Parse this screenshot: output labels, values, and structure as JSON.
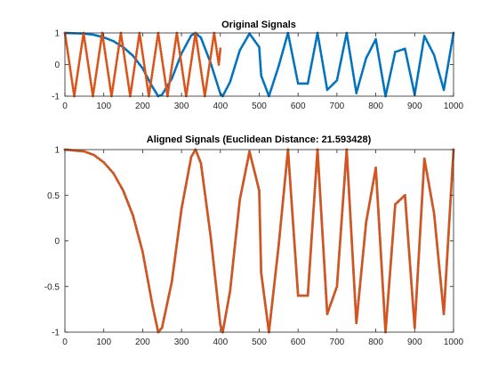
{
  "figure": {
    "background": "#ffffff"
  },
  "chart_data": [
    {
      "type": "line",
      "title": "Original Signals",
      "xlabel": "",
      "ylabel": "",
      "xlim": [
        0,
        1000
      ],
      "ylim": [
        -1,
        1
      ],
      "xticks": [
        0,
        100,
        200,
        300,
        400,
        500,
        600,
        700,
        800,
        900,
        1000
      ],
      "yticks": [
        -1,
        0,
        1
      ],
      "grid": false,
      "marker": "dot",
      "series": [
        {
          "color": "#0072BD",
          "description_of_curve": "chirp, 1000 samples",
          "x": [
            0,
            25,
            50,
            75,
            100,
            125,
            150,
            175,
            200,
            225,
            240,
            250,
            275,
            300,
            325,
            336,
            350,
            375,
            400,
            406,
            425,
            450,
            475,
            500,
            505,
            525,
            550,
            574,
            600,
            625,
            650,
            675,
            700,
            725,
            750,
            775,
            800,
            825,
            850,
            875,
            900,
            925,
            950,
            975,
            1000
          ],
          "y": [
            1,
            0.99,
            0.98,
            0.94,
            0.86,
            0.74,
            0.55,
            0.28,
            -0.12,
            -0.7,
            -1,
            -0.95,
            -0.45,
            0.35,
            0.92,
            1,
            0.85,
            0.05,
            -0.92,
            -1,
            -0.55,
            0.45,
            0.98,
            0.55,
            -0.35,
            -1,
            -0.05,
            1,
            -0.6,
            -0.6,
            1,
            -0.8,
            -0.5,
            1,
            -0.9,
            0.2,
            0.8,
            -1,
            0.4,
            0.5,
            -0.95,
            0.9,
            0.3,
            -0.8,
            1
          ]
        },
        {
          "color": "#D95319",
          "description_of_curve": "cosine, period ~48 samples, 400 samples",
          "x": [
            0,
            12,
            24,
            36,
            48,
            60,
            72,
            84,
            96,
            108,
            120,
            132,
            144,
            156,
            168,
            180,
            192,
            204,
            216,
            228,
            240,
            252,
            264,
            276,
            288,
            300,
            312,
            324,
            336,
            348,
            360,
            372,
            384,
            396,
            400
          ],
          "y": [
            1,
            0,
            -1,
            0,
            1,
            0,
            -1,
            0,
            1,
            0,
            -1,
            0,
            1,
            0,
            -1,
            0,
            1,
            0,
            -1,
            0,
            1,
            0,
            -1,
            0,
            1,
            0,
            -1,
            0,
            1,
            0,
            -1,
            0,
            1,
            0,
            0.5
          ]
        }
      ]
    },
    {
      "type": "line",
      "title": "Aligned Signals (Euclidean Distance: 21.593428)",
      "xlabel": "",
      "ylabel": "",
      "xlim": [
        0,
        1000
      ],
      "ylim": [
        -1,
        1
      ],
      "xticks": [
        0,
        100,
        200,
        300,
        400,
        500,
        600,
        700,
        800,
        900,
        1000
      ],
      "yticks": [
        -1,
        -0.5,
        0,
        0.5,
        1
      ],
      "grid": false,
      "marker": "dot",
      "series": [
        {
          "color": "#0072BD",
          "x": [
            0,
            25,
            50,
            75,
            100,
            125,
            150,
            175,
            200,
            225,
            240,
            250,
            275,
            300,
            325,
            336,
            350,
            375,
            400,
            406,
            425,
            450,
            475,
            500,
            505,
            525,
            550,
            574,
            600,
            625,
            650,
            675,
            700,
            725,
            750,
            775,
            800,
            825,
            850,
            875,
            900,
            925,
            950,
            975,
            1000
          ],
          "y": [
            1,
            0.99,
            0.98,
            0.94,
            0.86,
            0.74,
            0.55,
            0.28,
            -0.12,
            -0.7,
            -1,
            -0.95,
            -0.45,
            0.35,
            0.92,
            1,
            0.85,
            0.05,
            -0.92,
            -1,
            -0.55,
            0.45,
            0.98,
            0.55,
            -0.35,
            -1,
            -0.05,
            1,
            -0.6,
            -0.6,
            1,
            -0.8,
            -0.5,
            1,
            -0.9,
            0.2,
            0.8,
            -1,
            0.4,
            0.5,
            -0.95,
            0.9,
            0.3,
            -0.8,
            1
          ]
        },
        {
          "color": "#D95319",
          "x": [
            0,
            25,
            50,
            75,
            100,
            125,
            150,
            175,
            200,
            225,
            240,
            250,
            275,
            300,
            325,
            336,
            350,
            375,
            400,
            406,
            425,
            450,
            475,
            500,
            505,
            525,
            550,
            574,
            600,
            625,
            650,
            675,
            700,
            725,
            750,
            775,
            800,
            825,
            850,
            875,
            900,
            925,
            950,
            975,
            1000
          ],
          "y": [
            1,
            0.99,
            0.98,
            0.94,
            0.86,
            0.74,
            0.55,
            0.28,
            -0.12,
            -0.7,
            -1,
            -0.95,
            -0.45,
            0.35,
            0.92,
            1,
            0.85,
            0.05,
            -0.92,
            -1,
            -0.55,
            0.45,
            0.98,
            0.55,
            -0.35,
            -1,
            -0.05,
            1,
            -0.6,
            -0.6,
            1,
            -0.8,
            -0.5,
            1,
            -0.9,
            0.2,
            0.8,
            -1,
            0.4,
            0.5,
            -0.95,
            0.9,
            0.3,
            -0.8,
            1
          ]
        }
      ]
    }
  ]
}
